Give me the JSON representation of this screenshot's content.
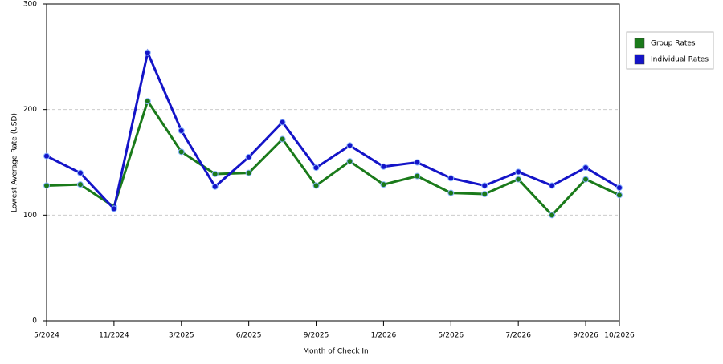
{
  "chart_data": {
    "type": "line",
    "xlabel": "Month of Check In",
    "ylabel": "Lowest Average Rate (USD)",
    "categories": [
      "5/2024",
      null,
      "11/2024",
      null,
      "3/2025",
      null,
      "6/2025",
      null,
      "9/2025",
      null,
      "1/2026",
      null,
      "5/2026",
      null,
      "7/2026",
      null,
      "9/2026",
      "10/2026"
    ],
    "series": [
      {
        "name": "Group Rates",
        "color": "#1a7a1a",
        "values": [
          128,
          129,
          108,
          208,
          160,
          139,
          140,
          172,
          128,
          151,
          129,
          137,
          121,
          120,
          134,
          100,
          134,
          119
        ]
      },
      {
        "name": "Individual Rates",
        "color": "#1414c8",
        "values": [
          156,
          140,
          106,
          254,
          180,
          127,
          155,
          188,
          145,
          166,
          146,
          150,
          135,
          128,
          141,
          128,
          145,
          126
        ]
      }
    ],
    "ylim": [
      0,
      300
    ],
    "yticks": [
      0,
      100,
      200,
      300
    ],
    "grid": true,
    "legend": "right"
  }
}
